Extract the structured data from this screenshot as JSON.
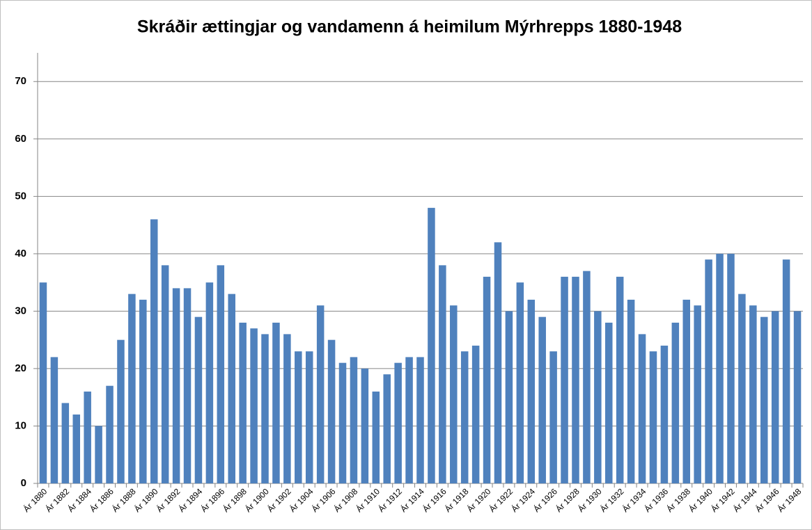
{
  "chart_data": {
    "type": "bar",
    "title": "Skráðir ættingjar og vandamenn á heimilum Mýrhrepps 1880-1948",
    "categories": [
      "Ár 1880",
      null,
      "Ár 1882",
      null,
      "Ár 1884",
      null,
      "Ár 1886",
      null,
      "Ár 1888",
      null,
      "Ár 1890",
      null,
      "Ár 1892",
      null,
      "Ár 1894",
      null,
      "Ár 1896",
      null,
      "Ár 1898",
      null,
      "Ár 1900",
      null,
      "Ár 1902",
      null,
      "Ár 1904",
      null,
      "Ár 1906",
      null,
      "Ár 1908",
      null,
      "Ár 1910",
      null,
      "Ár 1912",
      null,
      "Ár 1914",
      null,
      "Ár 1916",
      null,
      "Ár 1918",
      null,
      "Ár 1920",
      null,
      "Ár 1922",
      null,
      "Ár 1924",
      null,
      "Ár 1926",
      null,
      "Ár 1928",
      null,
      "Ár 1930",
      null,
      "Ár 1932",
      null,
      "Ár 1934",
      null,
      "Ár 1936",
      null,
      "Ár 1938",
      null,
      "Ár 1940",
      null,
      "Ár 1942",
      null,
      "Ár 1944",
      null,
      "Ár 1946",
      null,
      "Ár 1948"
    ],
    "values": [
      35,
      22,
      14,
      12,
      16,
      10,
      17,
      25,
      33,
      32,
      46,
      38,
      34,
      34,
      29,
      35,
      38,
      33,
      28,
      27,
      26,
      28,
      26,
      23,
      23,
      31,
      25,
      21,
      22,
      20,
      16,
      19,
      21,
      22,
      22,
      48,
      38,
      31,
      23,
      24,
      36,
      42,
      30,
      35,
      32,
      29,
      23,
      36,
      36,
      37,
      30,
      28,
      36,
      32,
      26,
      23,
      24,
      28,
      32,
      31,
      39,
      40,
      40,
      33,
      31,
      29,
      30,
      39,
      30
    ],
    "color": "#4f81bd",
    "ylim": [
      0,
      75
    ],
    "yticks": [
      0,
      10,
      20,
      30,
      40,
      50,
      60,
      70
    ],
    "grid": true
  }
}
